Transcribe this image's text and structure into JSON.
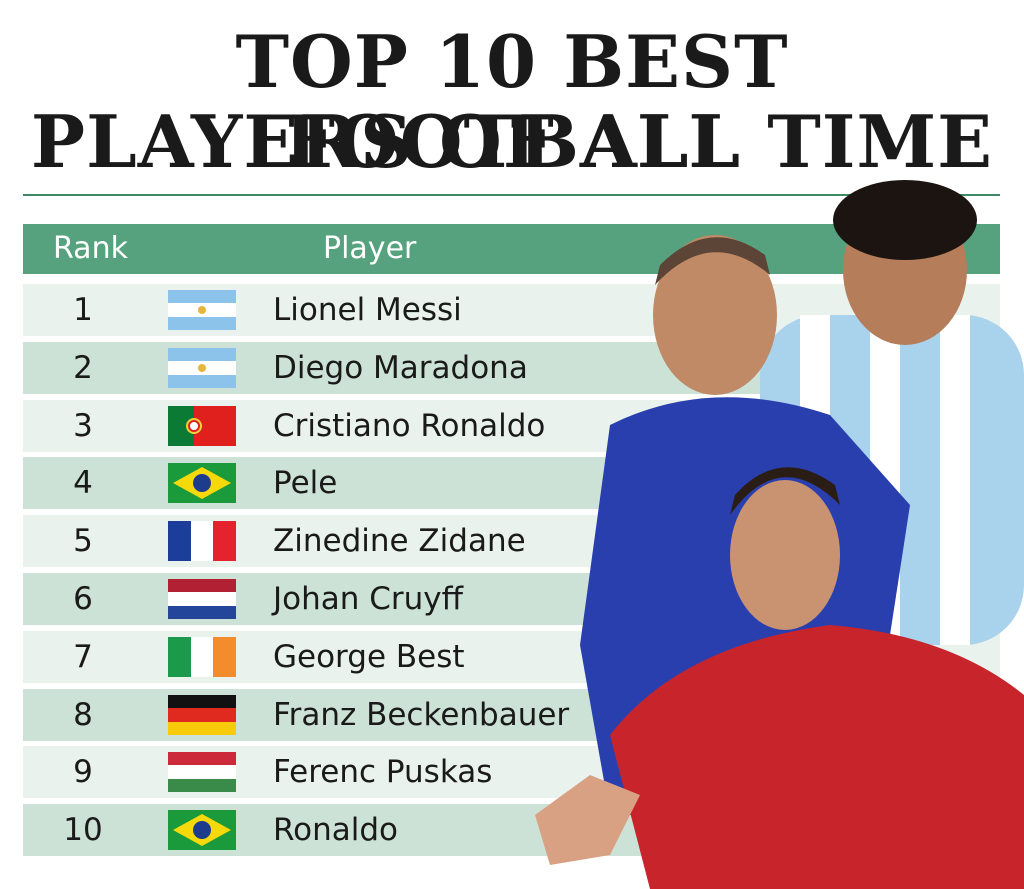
{
  "title": {
    "line1": "TOP 10 BEST FOOTBALL",
    "line2": "PLAYERS OF ALL TIME"
  },
  "table": {
    "header": [
      "Rank",
      "Player"
    ],
    "rows": [
      [
        1,
        "Lionel Messi"
      ],
      [
        2,
        "Diego Maradona"
      ],
      [
        3,
        "Cristiano Ronaldo"
      ],
      [
        4,
        "Pele"
      ],
      [
        5,
        "Zinedine Zidane"
      ],
      [
        6,
        "Johan Cruyff"
      ],
      [
        7,
        "George Best"
      ],
      [
        8,
        "Franz Beckenbauer"
      ],
      [
        9,
        "Ferenc Puskas"
      ],
      [
        10,
        "Ronaldo"
      ]
    ]
  }
}
